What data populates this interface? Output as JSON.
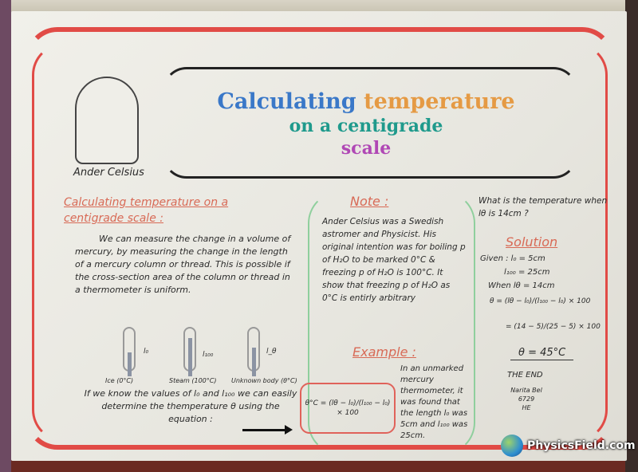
{
  "title": {
    "word1": "Calculating",
    "word2": "temperature",
    "word3": "on a",
    "word4": "centigrade",
    "word5": "scale"
  },
  "portrait": {
    "caption": "Ander Celsius"
  },
  "left": {
    "heading": "Calculating temperature on a centigrade scale :",
    "body": "We can measure the change in a volume of mercury, by measuring the change in the length of a mercury column or thread. This is possible if the cross-section area of the column or thread in a thermometer is uniform.",
    "thermometers": [
      {
        "label": "Ice (0°C)",
        "mark": "l₀"
      },
      {
        "label": "Steam (100°C)",
        "mark": "l₁₀₀"
      },
      {
        "label": "Unknown body (θ°C)",
        "mark": "l_θ"
      }
    ],
    "bottom": "If we know the values of l₀ and l₁₀₀ we can easily determine the themperature θ using the equation :"
  },
  "note": {
    "heading": "Note :",
    "body": "Ander Celsius was a Swedish astromer and Physicist. His original intention was for boiling p of H₂O to be marked 0°C & freezing p of H₂O is 100°C. It show that freezing p of H₂O as 0°C is entirly arbitrary"
  },
  "example": {
    "heading": "Example :",
    "body": "In an unmarked mercury thermometer, it was found that the length l₀ was 5cm and l₁₀₀ was 25cm.",
    "formula": "θ°C = (lθ − l₀)/(l₁₀₀ − l₀) × 100"
  },
  "solution": {
    "question": "What is the temperature when lθ is 14cm ?",
    "heading": "Solution",
    "lines": [
      "Given : l₀ = 5cm",
      "l₁₀₀ = 25cm",
      "When lθ = 14cm",
      "θ = (lθ − l₀)/(l₁₀₀ − l₀) × 100",
      "= (14 − 5)/(25 − 5) × 100",
      "θ = 45°C"
    ],
    "end": "THE END",
    "signature": [
      "Narita Bel",
      "6729",
      "HE"
    ]
  },
  "logo": {
    "text": "PhysicsField.com"
  },
  "colors": {
    "border": "#e14b46",
    "heading": "#d86a56",
    "title_blue": "#3a78c8",
    "title_orange": "#e59a44",
    "title_teal": "#1f9a8c",
    "title_purple": "#b048b5"
  }
}
